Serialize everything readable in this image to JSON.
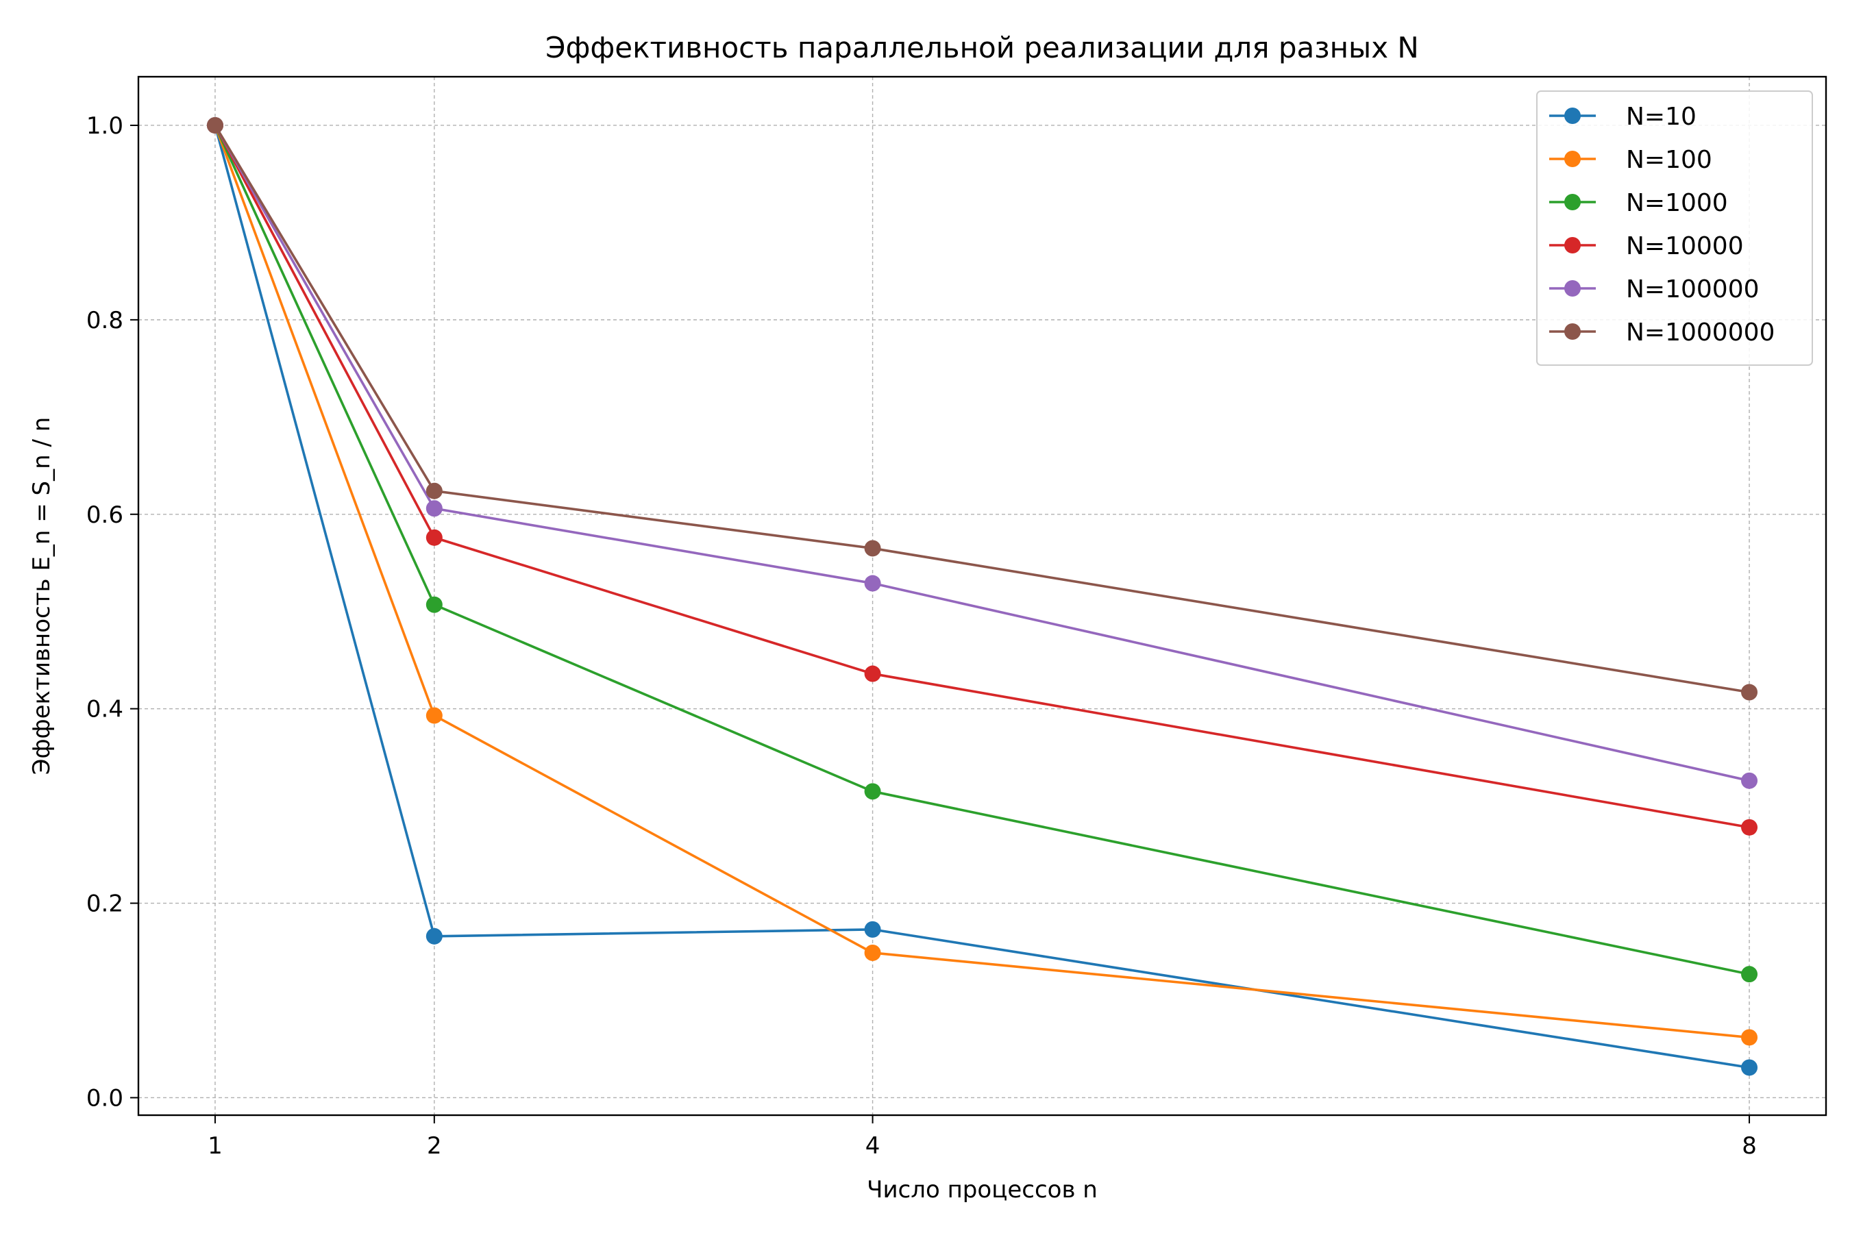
{
  "chart_data": {
    "type": "line",
    "title": "Эффективность параллельной реализации для разных N",
    "xlabel": "Число процессов n",
    "ylabel": "Эффективность E_n = S_n / n",
    "x": [
      1,
      2,
      4,
      8
    ],
    "x_tick_labels": [
      "1",
      "2",
      "4",
      "8"
    ],
    "y_ticks": [
      0.0,
      0.2,
      0.4,
      0.6,
      0.8,
      1.0
    ],
    "y_tick_labels": [
      "0.0",
      "0.2",
      "0.4",
      "0.6",
      "0.8",
      "1.0"
    ],
    "xlim": [
      0.65,
      8.35
    ],
    "ylim": [
      -0.018,
      1.05
    ],
    "grid": true,
    "legend_position": "top-right",
    "series": [
      {
        "name": "N=10",
        "color": "#1f77b4",
        "values": [
          1.0,
          0.166,
          0.173,
          0.031
        ]
      },
      {
        "name": "N=100",
        "color": "#ff7f0e",
        "values": [
          1.0,
          0.393,
          0.149,
          0.062
        ]
      },
      {
        "name": "N=1000",
        "color": "#2ca02c",
        "values": [
          1.0,
          0.507,
          0.315,
          0.127
        ]
      },
      {
        "name": "N=10000",
        "color": "#d62728",
        "values": [
          1.0,
          0.576,
          0.436,
          0.278
        ]
      },
      {
        "name": "N=100000",
        "color": "#9467bd",
        "values": [
          1.0,
          0.606,
          0.529,
          0.326
        ]
      },
      {
        "name": "N=1000000",
        "color": "#8c564b",
        "values": [
          1.0,
          0.624,
          0.565,
          0.417
        ]
      }
    ]
  }
}
